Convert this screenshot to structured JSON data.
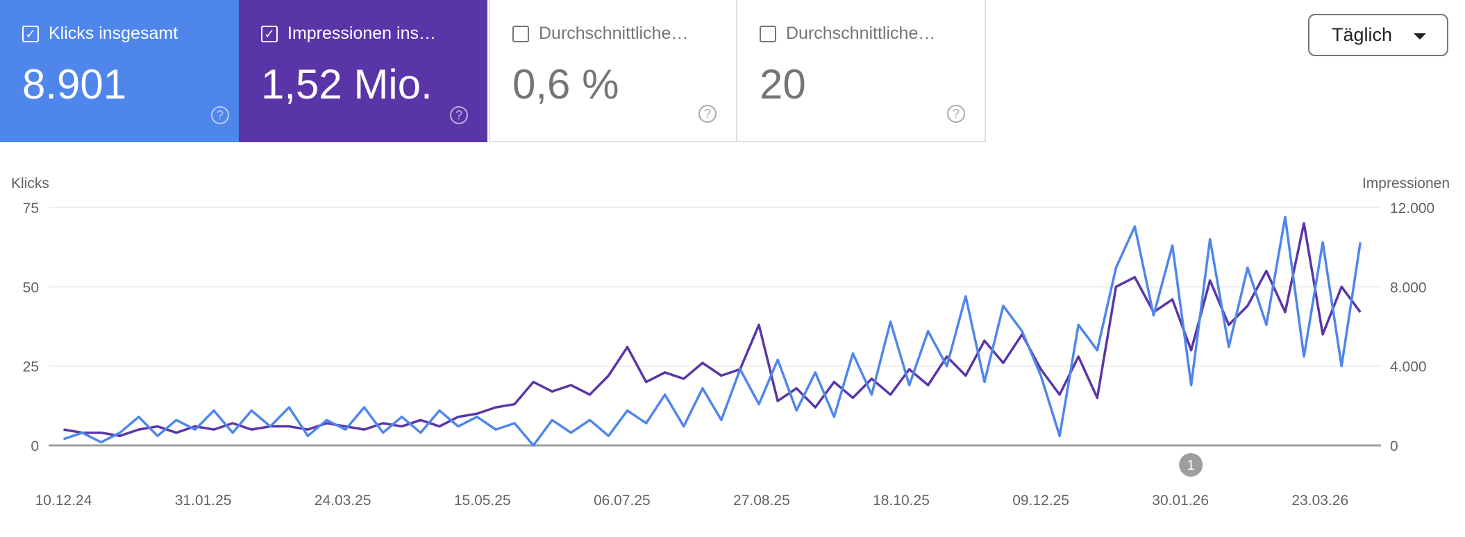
{
  "metrics": [
    {
      "label": "Klicks insgesamt",
      "value": "8.901",
      "checked": true,
      "color": "#4e86ec"
    },
    {
      "label": "Impressionen ins…",
      "value": "1,52 Mio.",
      "checked": true,
      "color": "#5a35a8"
    },
    {
      "label": "Durchschnittliche…",
      "value": "0,6 %",
      "checked": false
    },
    {
      "label": "Durchschnittliche…",
      "value": "20",
      "checked": false
    }
  ],
  "period_select": "Täglich",
  "annotation_label": "1",
  "chart_data": {
    "type": "line",
    "ylabel_left": "Klicks",
    "ylabel_right": "Impressionen",
    "ylim_left": [
      0,
      75
    ],
    "ylim_right": [
      0,
      12000
    ],
    "yticks_left": [
      "0",
      "25",
      "50",
      "75"
    ],
    "yticks_right": [
      "0",
      "4.000",
      "8.000",
      "12.000"
    ],
    "xticks": [
      "10.12.24",
      "31.01.25",
      "24.03.25",
      "15.05.25",
      "06.07.25",
      "27.08.25",
      "18.10.25",
      "09.12.25",
      "30.01.26",
      "23.03.26"
    ],
    "grid": true,
    "x": [
      "10.12.24",
      "17.12.24",
      "24.12.24",
      "31.12.24",
      "07.01.25",
      "14.01.25",
      "21.01.25",
      "28.01.25",
      "04.02.25",
      "11.02.25",
      "18.02.25",
      "25.02.25",
      "04.03.25",
      "11.03.25",
      "18.03.25",
      "25.03.25",
      "01.04.25",
      "08.04.25",
      "15.04.25",
      "22.04.25",
      "29.04.25",
      "06.05.25",
      "13.05.25",
      "20.05.25",
      "27.05.25",
      "03.06.25",
      "10.06.25",
      "17.06.25",
      "24.06.25",
      "01.07.25",
      "08.07.25",
      "15.07.25",
      "22.07.25",
      "29.07.25",
      "05.08.25",
      "12.08.25",
      "19.08.25",
      "26.08.25",
      "02.09.25",
      "09.09.25",
      "16.09.25",
      "23.09.25",
      "30.09.25",
      "07.10.25",
      "14.10.25",
      "21.10.25",
      "28.10.25",
      "04.11.25",
      "11.11.25",
      "18.11.25",
      "25.11.25",
      "02.12.25",
      "09.12.25",
      "16.12.25",
      "23.12.25",
      "30.12.25",
      "06.01.26",
      "13.01.26",
      "20.01.26",
      "27.01.26",
      "03.02.26",
      "10.02.26",
      "17.02.26",
      "24.02.26",
      "03.03.26",
      "10.03.26",
      "17.03.26",
      "24.03.26",
      "31.03.26",
      "07.04.26"
    ],
    "series": [
      {
        "name": "Klicks",
        "axis": "left",
        "color": "#4e86ec",
        "values": [
          2,
          4,
          1,
          4,
          9,
          3,
          8,
          5,
          11,
          4,
          11,
          6,
          12,
          3,
          8,
          5,
          12,
          4,
          9,
          4,
          11,
          6,
          9,
          5,
          7,
          0,
          8,
          4,
          8,
          3,
          11,
          7,
          16,
          6,
          18,
          8,
          24,
          13,
          27,
          11,
          23,
          9,
          29,
          16,
          39,
          19,
          36,
          25,
          47,
          20,
          44,
          36,
          22,
          3,
          38,
          30,
          56,
          69,
          41,
          63,
          19,
          65,
          31,
          56,
          38,
          72,
          28,
          64,
          25,
          64
        ]
      },
      {
        "name": "Impressionen",
        "axis": "right",
        "color": "#5a35a8",
        "values": [
          800,
          640,
          640,
          480,
          800,
          960,
          640,
          960,
          800,
          1120,
          800,
          960,
          960,
          800,
          1120,
          960,
          800,
          1120,
          960,
          1280,
          960,
          1440,
          1600,
          1920,
          2080,
          3200,
          2720,
          3040,
          2560,
          3520,
          4960,
          3200,
          3680,
          3360,
          4160,
          3520,
          3840,
          6080,
          2240,
          2880,
          1920,
          3200,
          2400,
          3360,
          2560,
          3840,
          3040,
          4480,
          3520,
          5280,
          4160,
          5600,
          3840,
          2560,
          4480,
          2400,
          8000,
          8480,
          6720,
          7360,
          4800,
          8320,
          6080,
          7040,
          8800,
          6720,
          11200,
          5600,
          8000,
          6720
        ]
      }
    ]
  }
}
